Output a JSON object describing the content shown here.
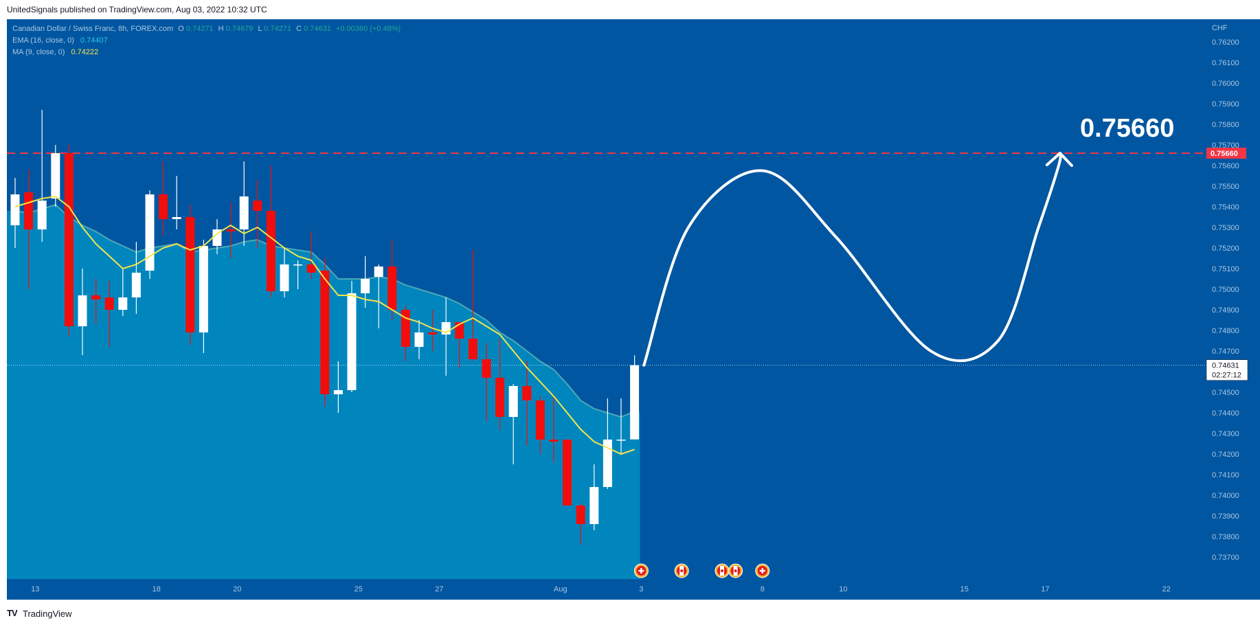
{
  "header": {
    "published": "UnitedSignals published on TradingView.com, Aug 03, 2022 10:32 UTC"
  },
  "footer": {
    "brand": "TradingView",
    "logo_icon": "tradingview-logo-icon"
  },
  "legend": {
    "symbol": "Canadian Dollar / Swiss Franc, 8h, FOREX.com",
    "o_label": "O",
    "o": "0.74271",
    "h_label": "H",
    "h": "0.74679",
    "l_label": "L",
    "l": "0.74271",
    "c_label": "C",
    "c": "0.74631",
    "change": "+0.00360 (+0.48%)",
    "ema_label": "EMA (16, close, 0)",
    "ema_value": "0.74407",
    "ma_label": "MA (9, close, 0)",
    "ma_value": "0.74222"
  },
  "price_axis": {
    "currency": "CHF",
    "ticks": [
      "0.76200",
      "0.76100",
      "0.76000",
      "0.75900",
      "0.75800",
      "0.75700",
      "0.75600",
      "0.75500",
      "0.75400",
      "0.75300",
      "0.75200",
      "0.75100",
      "0.75000",
      "0.74900",
      "0.74800",
      "0.74700",
      "0.74600",
      "0.74500",
      "0.74400",
      "0.74300",
      "0.74200",
      "0.74100",
      "0.74000",
      "0.73900",
      "0.73800",
      "0.73700"
    ],
    "target_label": "0.75660",
    "current_label": "0.74631",
    "countdown": "02:27:12"
  },
  "time_axis": {
    "ticks": [
      {
        "label": "13",
        "bar": 1.5
      },
      {
        "label": "18",
        "bar": 10.5
      },
      {
        "label": "20",
        "bar": 16.5
      },
      {
        "label": "25",
        "bar": 25.5
      },
      {
        "label": "27",
        "bar": 31.5
      },
      {
        "label": "Aug",
        "bar": 40.5
      },
      {
        "label": "3",
        "bar": 46.5
      },
      {
        "label": "8",
        "bar": 55.5
      },
      {
        "label": "10",
        "bar": 61.5
      },
      {
        "label": "15",
        "bar": 70.5
      },
      {
        "label": "17",
        "bar": 76.5
      },
      {
        "label": "22",
        "bar": 85.5
      }
    ]
  },
  "annotation": {
    "target_text": "0.75660"
  },
  "events": [
    {
      "bar": 46.5,
      "type": "ch"
    },
    {
      "bar": 49.5,
      "type": "ca"
    },
    {
      "bar": 52.5,
      "type": "ca"
    },
    {
      "bar": 53.5,
      "type": "ca"
    },
    {
      "bar": 55.5,
      "type": "ch"
    }
  ],
  "colors": {
    "background": "#0056a0",
    "area": "#0086bd",
    "up_candle": "#ffffff",
    "down_candle": "#f20d0d",
    "ma_line": "#f5e64a",
    "ema_line": "#8fd6b8",
    "target_line": "#f23645",
    "text": "#a9c7e6"
  },
  "chart_data": {
    "type": "candlestick",
    "symbol": "CADCHF",
    "timeframe": "8h",
    "ylim": [
      0.7364,
      0.7631
    ],
    "target_level": 0.7566,
    "current_price": 0.74631,
    "candles": [
      {
        "o": 0.7531,
        "h": 0.7554,
        "l": 0.752,
        "c": 0.7546
      },
      {
        "o": 0.7547,
        "h": 0.7558,
        "l": 0.75,
        "c": 0.7529
      },
      {
        "o": 0.7529,
        "h": 0.7587,
        "l": 0.7523,
        "c": 0.7543
      },
      {
        "o": 0.7544,
        "h": 0.757,
        "l": 0.754,
        "c": 0.7566
      },
      {
        "o": 0.7566,
        "h": 0.757,
        "l": 0.7477,
        "c": 0.7482
      },
      {
        "o": 0.7482,
        "h": 0.751,
        "l": 0.7468,
        "c": 0.7497
      },
      {
        "o": 0.7497,
        "h": 0.7505,
        "l": 0.7483,
        "c": 0.7495
      },
      {
        "o": 0.7496,
        "h": 0.7504,
        "l": 0.7472,
        "c": 0.749
      },
      {
        "o": 0.749,
        "h": 0.751,
        "l": 0.7487,
        "c": 0.7496
      },
      {
        "o": 0.7496,
        "h": 0.7523,
        "l": 0.7488,
        "c": 0.7508
      },
      {
        "o": 0.7509,
        "h": 0.7548,
        "l": 0.7505,
        "c": 0.7546
      },
      {
        "o": 0.7546,
        "h": 0.7562,
        "l": 0.7526,
        "c": 0.7534
      },
      {
        "o": 0.7534,
        "h": 0.7555,
        "l": 0.7529,
        "c": 0.7535
      },
      {
        "o": 0.7535,
        "h": 0.7541,
        "l": 0.7473,
        "c": 0.7479
      },
      {
        "o": 0.7479,
        "h": 0.7524,
        "l": 0.7469,
        "c": 0.7521
      },
      {
        "o": 0.7521,
        "h": 0.7534,
        "l": 0.7517,
        "c": 0.7529
      },
      {
        "o": 0.7529,
        "h": 0.7542,
        "l": 0.7515,
        "c": 0.7528
      },
      {
        "o": 0.7529,
        "h": 0.7562,
        "l": 0.7521,
        "c": 0.7545
      },
      {
        "o": 0.7543,
        "h": 0.7553,
        "l": 0.752,
        "c": 0.7538
      },
      {
        "o": 0.7538,
        "h": 0.756,
        "l": 0.7496,
        "c": 0.7499
      },
      {
        "o": 0.7499,
        "h": 0.752,
        "l": 0.7496,
        "c": 0.7512
      },
      {
        "o": 0.7512,
        "h": 0.7514,
        "l": 0.75,
        "c": 0.7512
      },
      {
        "o": 0.7512,
        "h": 0.7528,
        "l": 0.7505,
        "c": 0.7508
      },
      {
        "o": 0.7509,
        "h": 0.7515,
        "l": 0.7443,
        "c": 0.7449
      },
      {
        "o": 0.7449,
        "h": 0.7465,
        "l": 0.744,
        "c": 0.7451
      },
      {
        "o": 0.7451,
        "h": 0.7504,
        "l": 0.745,
        "c": 0.7498
      },
      {
        "o": 0.7498,
        "h": 0.7516,
        "l": 0.7491,
        "c": 0.7505
      },
      {
        "o": 0.7506,
        "h": 0.7512,
        "l": 0.7481,
        "c": 0.7511
      },
      {
        "o": 0.7511,
        "h": 0.7524,
        "l": 0.7485,
        "c": 0.749
      },
      {
        "o": 0.749,
        "h": 0.7492,
        "l": 0.7465,
        "c": 0.7472
      },
      {
        "o": 0.7472,
        "h": 0.7485,
        "l": 0.7466,
        "c": 0.7479
      },
      {
        "o": 0.7479,
        "h": 0.749,
        "l": 0.747,
        "c": 0.7478
      },
      {
        "o": 0.7478,
        "h": 0.7496,
        "l": 0.7458,
        "c": 0.7484
      },
      {
        "o": 0.7484,
        "h": 0.7484,
        "l": 0.7462,
        "c": 0.7476
      },
      {
        "o": 0.7476,
        "h": 0.7519,
        "l": 0.7465,
        "c": 0.7466
      },
      {
        "o": 0.7466,
        "h": 0.7474,
        "l": 0.7436,
        "c": 0.7457
      },
      {
        "o": 0.7457,
        "h": 0.7476,
        "l": 0.7432,
        "c": 0.7438
      },
      {
        "o": 0.7438,
        "h": 0.7454,
        "l": 0.7415,
        "c": 0.7453
      },
      {
        "o": 0.7453,
        "h": 0.7465,
        "l": 0.7424,
        "c": 0.7446
      },
      {
        "o": 0.7446,
        "h": 0.7448,
        "l": 0.742,
        "c": 0.7427
      },
      {
        "o": 0.7427,
        "h": 0.7449,
        "l": 0.7416,
        "c": 0.7426
      },
      {
        "o": 0.7427,
        "h": 0.7427,
        "l": 0.7395,
        "c": 0.7395
      },
      {
        "o": 0.7395,
        "h": 0.7396,
        "l": 0.7376,
        "c": 0.7386
      },
      {
        "o": 0.7386,
        "h": 0.7415,
        "l": 0.7383,
        "c": 0.7404
      },
      {
        "o": 0.7404,
        "h": 0.7447,
        "l": 0.7403,
        "c": 0.7427
      },
      {
        "o": 0.7427,
        "h": 0.7447,
        "l": 0.742,
        "c": 0.7427
      },
      {
        "o": 0.74271,
        "h": 0.74679,
        "l": 0.74271,
        "c": 0.74631
      }
    ],
    "ema_16": [
      0.7538,
      0.7537,
      0.7539,
      0.7541,
      0.7535,
      0.7531,
      0.7528,
      0.7524,
      0.7521,
      0.7518,
      0.752,
      0.7521,
      0.7522,
      0.7518,
      0.7519,
      0.752,
      0.7521,
      0.7523,
      0.7524,
      0.7521,
      0.752,
      0.7519,
      0.7518,
      0.7512,
      0.7505,
      0.7505,
      0.7505,
      0.7506,
      0.7505,
      0.7502,
      0.75,
      0.7498,
      0.7496,
      0.7493,
      0.7489,
      0.7485,
      0.7479,
      0.7475,
      0.747,
      0.7465,
      0.7461,
      0.7454,
      0.7446,
      0.7442,
      0.744,
      0.7438,
      0.74407
    ],
    "ma_9": [
      0.754,
      0.7542,
      0.7544,
      0.7545,
      0.754,
      0.753,
      0.7522,
      0.7516,
      0.751,
      0.7512,
      0.7516,
      0.752,
      0.7522,
      0.7519,
      0.7521,
      0.7527,
      0.7531,
      0.7527,
      0.753,
      0.7525,
      0.752,
      0.7516,
      0.7514,
      0.7505,
      0.7497,
      0.7497,
      0.7495,
      0.7494,
      0.749,
      0.7486,
      0.7484,
      0.7481,
      0.7479,
      0.7483,
      0.7486,
      0.7482,
      0.7478,
      0.747,
      0.7462,
      0.7455,
      0.7448,
      0.744,
      0.7432,
      0.7426,
      0.7423,
      0.742,
      0.74222
    ],
    "projection": [
      {
        "bar": 46.7,
        "price": 0.74631
      },
      {
        "bar": 50,
        "price": 0.753
      },
      {
        "bar": 55.5,
        "price": 0.75575
      },
      {
        "bar": 61,
        "price": 0.7525
      },
      {
        "bar": 68,
        "price": 0.747
      },
      {
        "bar": 73,
        "price": 0.7475
      },
      {
        "bar": 76,
        "price": 0.753
      },
      {
        "bar": 77.5,
        "price": 0.756
      },
      {
        "bar": 77.6,
        "price": 0.7566
      }
    ]
  }
}
